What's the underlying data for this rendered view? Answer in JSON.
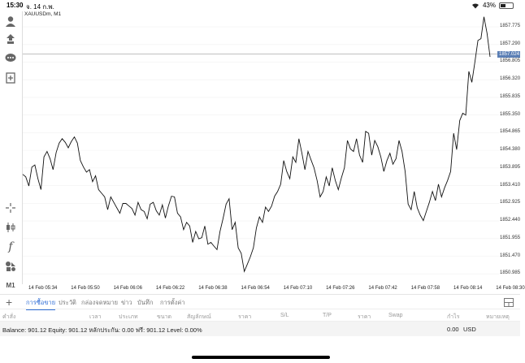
{
  "status": {
    "time": "15:30",
    "date": "จ. 14 ก.พ.",
    "battery": "43%",
    "battery_level": 0.43
  },
  "chart": {
    "symbol": "XAUUSDm, M1",
    "current_price": "1857.024",
    "price_ticks": [
      "1857.775",
      "1857.290",
      "1856.805",
      "1856.320",
      "1855.835",
      "1855.350",
      "1854.865",
      "1854.380",
      "1853.895",
      "1853.410",
      "1852.925",
      "1852.440",
      "1851.955",
      "1851.470",
      "1850.985"
    ],
    "time_ticks": [
      "14 Feb 05:34",
      "14 Feb 05:50",
      "14 Feb 06:06",
      "14 Feb 06:22",
      "14 Feb 06:38",
      "14 Feb 06:54",
      "14 Feb 07:10",
      "14 Feb 07:26",
      "14 Feb 07:42",
      "14 Feb 07:58",
      "14 Feb 08:14",
      "14 Feb 08:30"
    ]
  },
  "chart_data": {
    "type": "line",
    "ylim": [
      1850.7,
      1858.2
    ],
    "x_domain": [
      "14 Feb 05:28",
      "14 Feb 08:30"
    ],
    "values": [
      1853.72,
      1853.65,
      1853.4,
      1853.92,
      1853.98,
      1853.6,
      1853.3,
      1854.2,
      1854.35,
      1854.15,
      1853.85,
      1854.32,
      1854.58,
      1854.7,
      1854.6,
      1854.45,
      1854.62,
      1854.75,
      1854.58,
      1854.1,
      1853.92,
      1853.78,
      1853.85,
      1853.52,
      1853.68,
      1853.3,
      1853.2,
      1853.1,
      1852.75,
      1853.1,
      1852.95,
      1852.8,
      1852.65,
      1852.92,
      1852.92,
      1852.85,
      1852.78,
      1852.6,
      1852.95,
      1852.75,
      1852.7,
      1852.5,
      1852.9,
      1852.95,
      1852.72,
      1852.6,
      1852.88,
      1852.52,
      1852.85,
      1853.12,
      1853.1,
      1852.65,
      1852.55,
      1852.2,
      1852.4,
      1852.3,
      1851.85,
      1852.15,
      1851.95,
      1851.98,
      1852.3,
      1851.8,
      1851.85,
      1851.75,
      1851.65,
      1852.15,
      1852.5,
      1852.9,
      1853.05,
      1852.2,
      1852.4,
      1851.7,
      1851.55,
      1851.05,
      1851.25,
      1851.45,
      1851.7,
      1852.25,
      1852.55,
      1852.4,
      1852.82,
      1852.7,
      1852.85,
      1853.12,
      1853.25,
      1853.45,
      1854.1,
      1853.8,
      1853.6,
      1854.2,
      1854.05,
      1854.7,
      1854.3,
      1853.85,
      1854.35,
      1854.12,
      1853.9,
      1853.55,
      1853.1,
      1853.25,
      1853.65,
      1853.4,
      1853.9,
      1853.55,
      1853.3,
      1853.62,
      1853.9,
      1854.65,
      1854.42,
      1854.35,
      1854.7,
      1854.25,
      1854.05,
      1854.9,
      1854.85,
      1854.25,
      1854.65,
      1854.48,
      1854.2,
      1853.8,
      1854.1,
      1854.3,
      1854.0,
      1854.15,
      1854.65,
      1854.35,
      1853.8,
      1852.9,
      1852.75,
      1853.25,
      1852.8,
      1852.6,
      1852.45,
      1852.7,
      1852.95,
      1853.25,
      1853.0,
      1853.45,
      1853.1,
      1853.35,
      1853.55,
      1853.8,
      1854.85,
      1854.4,
      1855.2,
      1855.4,
      1855.35,
      1856.55,
      1856.25,
      1856.8,
      1857.4,
      1857.45,
      1858.05,
      1857.6,
      1856.95
    ]
  },
  "bottom": {
    "tabs": [
      "การซื้อขาย",
      "ประวัติ",
      "กล่องจดหมาย",
      "ข่าว",
      "บันทึก",
      "การตั้งค่า"
    ],
    "columns": [
      "คำสั่ง",
      "เวลา",
      "ประเภท",
      "ขนาด",
      "สัญลักษณ์",
      "ราคา",
      "S/L",
      "T/P",
      "ราคา",
      "Swap",
      "กำไร",
      "หมายเหตุ"
    ],
    "balance_text": "Balance: 901.12 Equity: 901.12 หลักประกัน: 0.00 ฟรี: 901.12 Level: 0.00%",
    "profit": "0.00",
    "currency": "USD"
  }
}
